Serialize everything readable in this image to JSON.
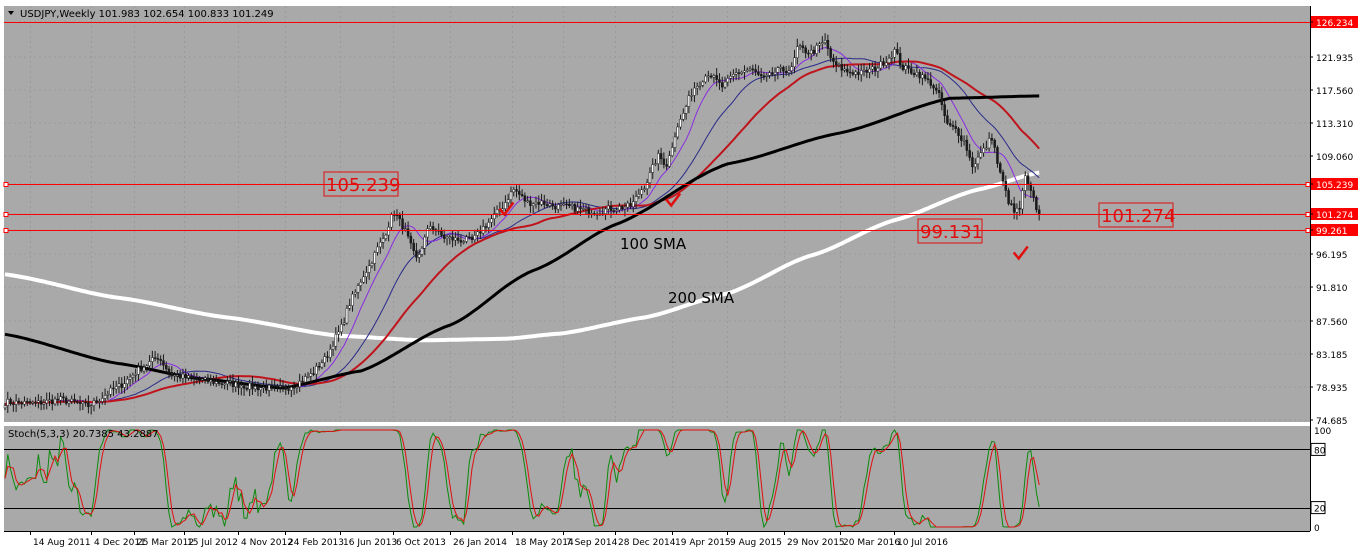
{
  "window": {
    "header": "USDJPY,Weekly  101.983 102.654 100.833 101.249",
    "arrow_icon": "triangle-down-icon"
  },
  "colors": {
    "plot_bg": "#a9a9a9",
    "frame_bg": "#ffffff",
    "grid": "#9a9a9a",
    "bull": "#1a1a1a",
    "bear": "#1a1a1a",
    "line_red": "#ff0000",
    "sma_fast": "#8a2be2",
    "sma_mid": "#2a2a8a",
    "sma_red": "#c0141c",
    "sma100": "#000000",
    "sma200": "#ffffff",
    "stoch_main": "#0d8a0d",
    "stoch_signal": "#e01010",
    "annotation": "#e01010",
    "ann_text": "#000000"
  },
  "chart_data": [
    {
      "type": "candlestick",
      "symbol": "USDJPY",
      "timeframe": "Weekly",
      "ylim": [
        74.685,
        126.234
      ],
      "y_ticks": [
        "126.234",
        "121.935",
        "117.560",
        "113.310",
        "109.060",
        "105.239",
        "101.274",
        "99.261",
        "96.195",
        "91.810",
        "87.560",
        "83.185",
        "78.935",
        "74.685"
      ],
      "x_ticks": [
        "14 Aug 2011",
        "4 Dec 2011",
        "25 Mar 2012",
        "15 Jul 2012",
        "4 Nov 2012",
        "24 Feb 2013",
        "16 Jun 2013",
        "6 Oct 2013",
        "26 Jan 2014",
        "18 May 2014",
        "7 Sep 2014",
        "28 Dec 2014",
        "19 Apr 2015",
        "9 Aug 2015",
        "29 Nov 2015",
        "20 Mar 2016",
        "10 Jul 2016"
      ],
      "closes": [
        [
          0,
          77.0
        ],
        [
          10,
          76.8
        ],
        [
          20,
          77.3
        ],
        [
          30,
          76.5
        ],
        [
          40,
          78.8
        ],
        [
          50,
          81.6
        ],
        [
          55,
          82.8
        ],
        [
          60,
          80.5
        ],
        [
          70,
          79.8
        ],
        [
          80,
          79.4
        ],
        [
          90,
          78.9
        ],
        [
          100,
          78.7
        ],
        [
          105,
          79.4
        ],
        [
          110,
          80.5
        ],
        [
          115,
          82.5
        ],
        [
          120,
          86.0
        ],
        [
          125,
          90.5
        ],
        [
          130,
          94.0
        ],
        [
          135,
          97.5
        ],
        [
          140,
          101.5
        ],
        [
          143,
          99.8
        ],
        [
          148,
          95.5
        ],
        [
          153,
          99.8
        ],
        [
          158,
          98.3
        ],
        [
          163,
          98.0
        ],
        [
          168,
          97.9
        ],
        [
          173,
          99.9
        ],
        [
          178,
          101.8
        ],
        [
          183,
          104.5
        ],
        [
          188,
          102.8
        ],
        [
          193,
          102.8
        ],
        [
          198,
          102.3
        ],
        [
          203,
          102.2
        ],
        [
          208,
          101.8
        ],
        [
          213,
          101.6
        ],
        [
          218,
          102.0
        ],
        [
          225,
          102.3
        ],
        [
          230,
          105.0
        ],
        [
          235,
          109.0
        ],
        [
          238,
          107.9
        ],
        [
          242,
          113.0
        ],
        [
          248,
          117.9
        ],
        [
          253,
          119.8
        ],
        [
          258,
          118.0
        ],
        [
          263,
          119.8
        ],
        [
          268,
          120.3
        ],
        [
          273,
          119.0
        ],
        [
          278,
          120.1
        ],
        [
          283,
          120.3
        ],
        [
          285,
          123.0
        ],
        [
          290,
          122.5
        ],
        [
          295,
          123.8
        ],
        [
          298,
          121.0
        ],
        [
          303,
          120.0
        ],
        [
          308,
          119.8
        ],
        [
          313,
          120.4
        ],
        [
          317,
          121.5
        ],
        [
          320,
          122.7
        ],
        [
          323,
          120.5
        ],
        [
          328,
          119.8
        ],
        [
          333,
          118.5
        ],
        [
          336,
          116.8
        ],
        [
          339,
          113.0
        ],
        [
          342,
          112.5
        ],
        [
          345,
          111.0
        ],
        [
          348,
          107.8
        ],
        [
          352,
          109.8
        ],
        [
          355,
          111.5
        ],
        [
          358,
          106.6
        ],
        [
          361,
          103.0
        ],
        [
          363,
          101.5
        ],
        [
          365,
          102.0
        ],
        [
          367,
          106.1
        ],
        [
          369,
          104.0
        ],
        [
          372,
          101.27
        ]
      ],
      "series": [
        {
          "name": "100 SMA",
          "values": [
            [
              0,
              85.8
            ],
            [
              40,
              82.0
            ],
            [
              70,
              80.0
            ],
            [
              100,
              78.8
            ],
            [
              128,
              81.0
            ],
            [
              160,
              87.0
            ],
            [
              190,
              94.0
            ],
            [
              220,
              100.0
            ],
            [
              260,
              108.0
            ],
            [
              300,
              112.0
            ],
            [
              340,
              116.5
            ],
            [
              372,
              116.8
            ]
          ]
        },
        {
          "name": "200 SMA",
          "values": [
            [
              0,
              93.5
            ],
            [
              40,
              90.5
            ],
            [
              80,
              88.0
            ],
            [
              120,
              85.6
            ],
            [
              150,
              85.0
            ],
            [
              180,
              85.2
            ],
            [
              200,
              85.9
            ],
            [
              230,
              88.0
            ],
            [
              260,
              91.0
            ],
            [
              290,
              96.0
            ],
            [
              320,
              100.5
            ],
            [
              350,
              104.5
            ],
            [
              372,
              106.8
            ]
          ]
        }
      ],
      "annotations": [
        {
          "text": "105.239",
          "y": 105.239
        },
        {
          "text": "99.131",
          "y": 99.131
        },
        {
          "text": "101.274",
          "y": 101.274
        },
        {
          "text": "100 SMA"
        },
        {
          "text": "200 SMA"
        }
      ],
      "price_lines": [
        "126.234",
        "105.239",
        "101.274",
        "99.261"
      ],
      "checkmarks": [
        [
          180,
          101.6
        ],
        [
          240,
          102.8
        ],
        [
          365,
          96.0
        ]
      ]
    },
    {
      "type": "line",
      "name": "stochastic",
      "header": "Stoch(5,3,3) 20.7385 43.2887",
      "ylim": [
        0,
        100
      ],
      "y_ticks": [
        "100",
        "80",
        "20",
        "0"
      ],
      "levels": [
        80,
        20
      ]
    }
  ]
}
